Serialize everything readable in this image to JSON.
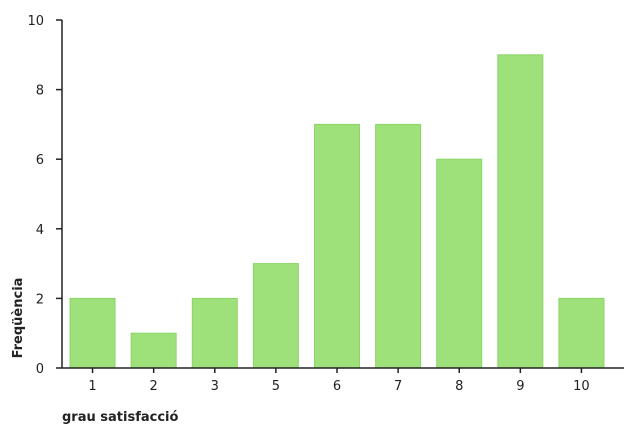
{
  "chart_data": {
    "type": "bar",
    "categories": [
      "1",
      "2",
      "3",
      "5",
      "6",
      "7",
      "8",
      "9",
      "10"
    ],
    "values": [
      2,
      1,
      2,
      3,
      7,
      7,
      6,
      9,
      2
    ],
    "xlabel": "grau satisfacció",
    "ylabel": "Freqüència",
    "ylim": [
      0,
      10
    ],
    "yticks": [
      0,
      2,
      4,
      6,
      8,
      10
    ],
    "bar_color": "#9ee07a",
    "bar_edge_color": "#8bd666",
    "axis_color": "#222222",
    "grid": false,
    "legend": "none"
  }
}
